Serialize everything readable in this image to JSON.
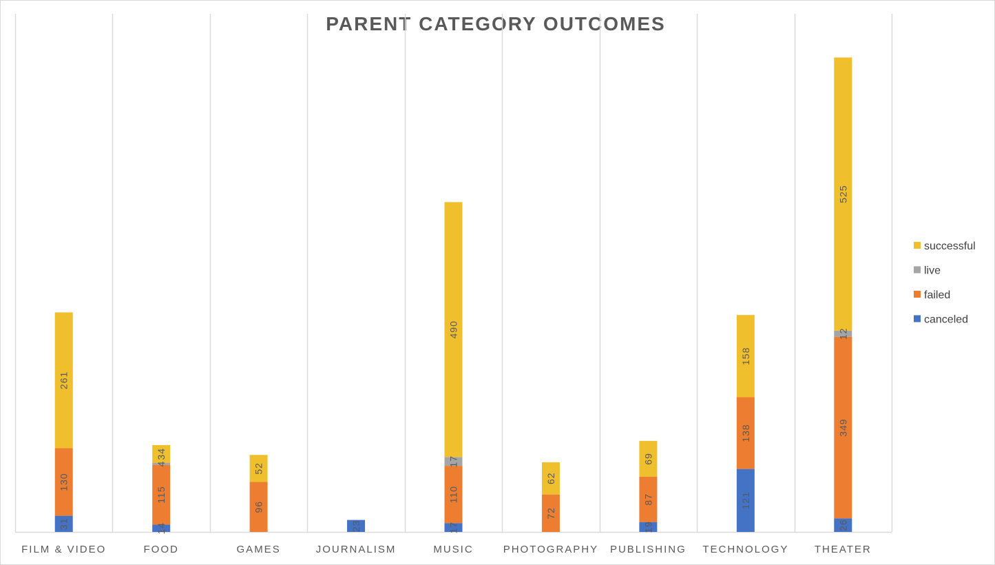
{
  "chart_data": {
    "type": "bar",
    "stacked": true,
    "title": "PARENT CATEGORY OUTCOMES",
    "xlabel": "",
    "ylabel": "",
    "ylim": [
      0,
      900
    ],
    "grid": "vertical category separators",
    "legend_position": "right",
    "categories": [
      "FILM & VIDEO",
      "FOOD",
      "GAMES",
      "JOURNALISM",
      "MUSIC",
      "PHOTOGRAPHY",
      "PUBLISHING",
      "TECHNOLOGY",
      "THEATER"
    ],
    "series": [
      {
        "name": "canceled",
        "color": "#4472C4",
        "values": [
          31,
          14,
          0,
          23,
          17,
          0,
          19,
          121,
          26
        ],
        "labels": [
          "31",
          "14",
          "",
          "23",
          "17",
          "",
          "19",
          "121",
          "26"
        ]
      },
      {
        "name": "failed",
        "color": "#ED7D31",
        "values": [
          130,
          115,
          96,
          0,
          110,
          72,
          87,
          138,
          349
        ],
        "labels": [
          "130",
          "115",
          "96",
          "",
          "110",
          "72",
          "87",
          "138",
          "349"
        ]
      },
      {
        "name": "live",
        "color": "#A5A5A5",
        "values": [
          0,
          4,
          0,
          0,
          17,
          0,
          0,
          0,
          12
        ],
        "labels": [
          "",
          "4",
          "",
          "",
          "17",
          "",
          "",
          "",
          "12"
        ]
      },
      {
        "name": "successful",
        "color": "#F0BF2E",
        "values": [
          261,
          34,
          52,
          0,
          490,
          62,
          69,
          158,
          525
        ],
        "labels": [
          "261",
          "34",
          "52",
          "",
          "490",
          "62",
          "69",
          "158",
          "525"
        ]
      }
    ],
    "legend_order": [
      "successful",
      "live",
      "failed",
      "canceled"
    ]
  },
  "colors": {
    "gridline": "#D9D9D9",
    "axis": "#D9D9D9",
    "text": "#595959"
  }
}
